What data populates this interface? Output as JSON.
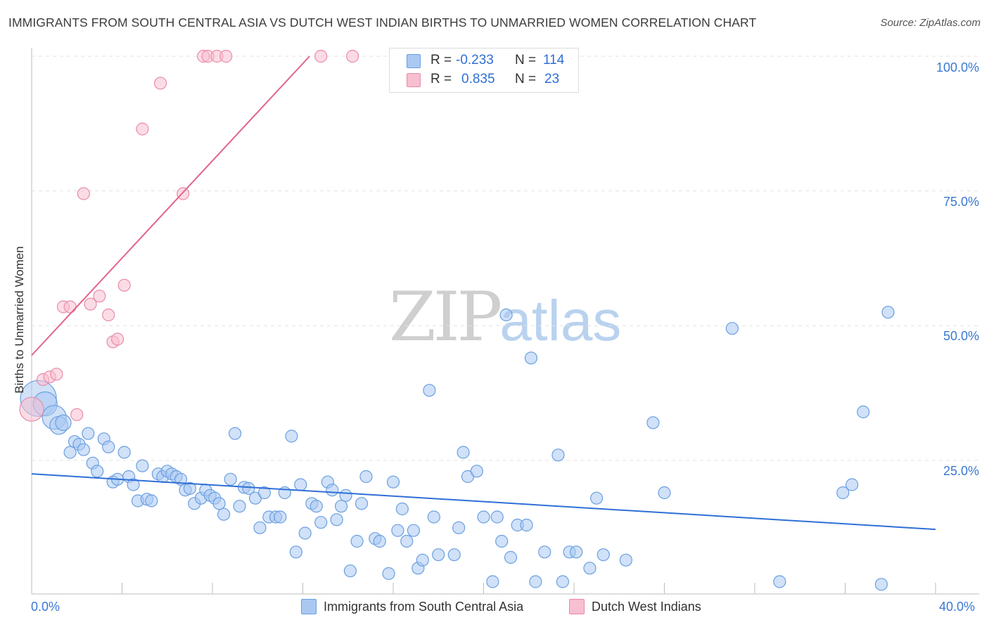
{
  "title": "IMMIGRANTS FROM SOUTH CENTRAL ASIA VS DUTCH WEST INDIAN BIRTHS TO UNMARRIED WOMEN CORRELATION CHART",
  "source": "Source: ZipAtlas.com",
  "watermark": {
    "zip": "ZIP",
    "atlas": "atlas"
  },
  "legend": {
    "rows": [
      {
        "r_label": "R =",
        "r_value": "-0.233",
        "n_label": "N =",
        "n_value": "114",
        "color": "#a9c9f2",
        "border": "#6a9fe0"
      },
      {
        "r_label": "R =",
        "r_value": "0.835",
        "n_label": "N =",
        "n_value": "23",
        "color": "#f7bfd0",
        "border": "#ea8aa8"
      }
    ]
  },
  "bottom_legend": [
    {
      "label": "Immigrants from South Central Asia",
      "color": "#a9c9f2",
      "border": "#6a9fe0"
    },
    {
      "label": "Dutch West Indians",
      "color": "#f7bfd0",
      "border": "#ea8aa8"
    }
  ],
  "chart_data": {
    "type": "scatter",
    "title": "IMMIGRANTS FROM SOUTH CENTRAL ASIA VS DUTCH WEST INDIAN BIRTHS TO UNMARRIED WOMEN CORRELATION CHART",
    "xlabel": "",
    "ylabel": "Births to Unmarried Women",
    "xlim": [
      0,
      40
    ],
    "ylim": [
      0,
      100
    ],
    "x_tick_labels": [
      "0.0%",
      "40.0%"
    ],
    "y_tick_labels": [
      "100.0%",
      "75.0%",
      "50.0%",
      "25.0%"
    ],
    "y_tick_values": [
      100,
      75,
      50,
      25
    ],
    "grid": true,
    "series": [
      {
        "name": "Immigrants from South Central Asia",
        "color": "#6a9fe0",
        "fill": "#a9c9f2",
        "trend": {
          "x": [
            0,
            40
          ],
          "y": [
            22.5,
            12.2
          ],
          "color": "#2f6fd6"
        },
        "points": [
          {
            "x": 0.3,
            "y": 36.5,
            "s": 3
          },
          {
            "x": 0.6,
            "y": 35.5,
            "s": 2
          },
          {
            "x": 1.0,
            "y": 33.0,
            "s": 2
          },
          {
            "x": 1.2,
            "y": 31.5,
            "s": 1.5
          },
          {
            "x": 1.4,
            "y": 32.0,
            "s": 1.3
          },
          {
            "x": 1.7,
            "y": 26.5,
            "s": 1
          },
          {
            "x": 1.9,
            "y": 28.5,
            "s": 1
          },
          {
            "x": 2.1,
            "y": 28.0,
            "s": 1
          },
          {
            "x": 2.3,
            "y": 27.0,
            "s": 1
          },
          {
            "x": 2.5,
            "y": 30.0,
            "s": 1
          },
          {
            "x": 2.7,
            "y": 24.5,
            "s": 1
          },
          {
            "x": 2.9,
            "y": 23.0,
            "s": 1
          },
          {
            "x": 3.2,
            "y": 29.0,
            "s": 1
          },
          {
            "x": 3.4,
            "y": 27.5,
            "s": 1
          },
          {
            "x": 3.6,
            "y": 21.0,
            "s": 1
          },
          {
            "x": 3.8,
            "y": 21.5,
            "s": 1
          },
          {
            "x": 4.1,
            "y": 26.5,
            "s": 1
          },
          {
            "x": 4.3,
            "y": 22.0,
            "s": 1
          },
          {
            "x": 4.5,
            "y": 20.5,
            "s": 1
          },
          {
            "x": 4.7,
            "y": 17.5,
            "s": 1
          },
          {
            "x": 4.9,
            "y": 24.0,
            "s": 1
          },
          {
            "x": 5.1,
            "y": 17.8,
            "s": 1
          },
          {
            "x": 5.3,
            "y": 17.5,
            "s": 1
          },
          {
            "x": 5.6,
            "y": 22.5,
            "s": 1
          },
          {
            "x": 5.8,
            "y": 22.0,
            "s": 1
          },
          {
            "x": 6.0,
            "y": 23.0,
            "s": 1
          },
          {
            "x": 6.2,
            "y": 22.5,
            "s": 1
          },
          {
            "x": 6.4,
            "y": 22.0,
            "s": 1
          },
          {
            "x": 6.6,
            "y": 21.5,
            "s": 1
          },
          {
            "x": 6.8,
            "y": 19.5,
            "s": 1
          },
          {
            "x": 7.0,
            "y": 19.8,
            "s": 1
          },
          {
            "x": 7.2,
            "y": 17.0,
            "s": 1
          },
          {
            "x": 7.5,
            "y": 18.0,
            "s": 1
          },
          {
            "x": 7.7,
            "y": 19.5,
            "s": 1
          },
          {
            "x": 7.9,
            "y": 18.5,
            "s": 1
          },
          {
            "x": 8.1,
            "y": 18.0,
            "s": 1
          },
          {
            "x": 8.3,
            "y": 17.0,
            "s": 1
          },
          {
            "x": 8.5,
            "y": 15.0,
            "s": 1
          },
          {
            "x": 8.8,
            "y": 21.5,
            "s": 1
          },
          {
            "x": 9.0,
            "y": 30.0,
            "s": 1
          },
          {
            "x": 9.2,
            "y": 16.5,
            "s": 1
          },
          {
            "x": 9.4,
            "y": 20.0,
            "s": 1
          },
          {
            "x": 9.6,
            "y": 19.8,
            "s": 1
          },
          {
            "x": 9.9,
            "y": 18.0,
            "s": 1
          },
          {
            "x": 10.1,
            "y": 12.5,
            "s": 1
          },
          {
            "x": 10.3,
            "y": 19.0,
            "s": 1
          },
          {
            "x": 10.5,
            "y": 14.5,
            "s": 1
          },
          {
            "x": 10.8,
            "y": 14.5,
            "s": 1
          },
          {
            "x": 11.0,
            "y": 14.5,
            "s": 1
          },
          {
            "x": 11.2,
            "y": 19.0,
            "s": 1
          },
          {
            "x": 11.5,
            "y": 29.5,
            "s": 1
          },
          {
            "x": 11.7,
            "y": 8.0,
            "s": 1
          },
          {
            "x": 11.9,
            "y": 20.5,
            "s": 1
          },
          {
            "x": 12.1,
            "y": 11.5,
            "s": 1
          },
          {
            "x": 12.4,
            "y": 17.0,
            "s": 1
          },
          {
            "x": 12.6,
            "y": 16.5,
            "s": 1
          },
          {
            "x": 12.8,
            "y": 13.5,
            "s": 1
          },
          {
            "x": 13.1,
            "y": 21.0,
            "s": 1
          },
          {
            "x": 13.3,
            "y": 19.5,
            "s": 1
          },
          {
            "x": 13.5,
            "y": 14.0,
            "s": 1
          },
          {
            "x": 13.7,
            "y": 16.5,
            "s": 1
          },
          {
            "x": 13.9,
            "y": 18.5,
            "s": 1
          },
          {
            "x": 14.1,
            "y": 4.5,
            "s": 1
          },
          {
            "x": 14.4,
            "y": 10.0,
            "s": 1
          },
          {
            "x": 14.6,
            "y": 17.0,
            "s": 1
          },
          {
            "x": 14.8,
            "y": 22.0,
            "s": 1
          },
          {
            "x": 15.2,
            "y": 10.5,
            "s": 1
          },
          {
            "x": 15.4,
            "y": 10.0,
            "s": 1
          },
          {
            "x": 15.8,
            "y": 4.0,
            "s": 1
          },
          {
            "x": 16.0,
            "y": 21.0,
            "s": 1
          },
          {
            "x": 16.2,
            "y": 12.0,
            "s": 1
          },
          {
            "x": 16.4,
            "y": 16.0,
            "s": 1
          },
          {
            "x": 16.6,
            "y": 10.0,
            "s": 1
          },
          {
            "x": 16.9,
            "y": 12.0,
            "s": 1
          },
          {
            "x": 17.1,
            "y": 5.0,
            "s": 1
          },
          {
            "x": 17.3,
            "y": 6.5,
            "s": 1
          },
          {
            "x": 17.6,
            "y": 38.0,
            "s": 1
          },
          {
            "x": 17.8,
            "y": 14.5,
            "s": 1
          },
          {
            "x": 18.0,
            "y": 7.5,
            "s": 1
          },
          {
            "x": 18.7,
            "y": 7.5,
            "s": 1
          },
          {
            "x": 18.9,
            "y": 12.5,
            "s": 1
          },
          {
            "x": 19.1,
            "y": 26.5,
            "s": 1
          },
          {
            "x": 19.3,
            "y": 22.0,
            "s": 1
          },
          {
            "x": 19.7,
            "y": 23.0,
            "s": 1
          },
          {
            "x": 20.0,
            "y": 14.5,
            "s": 1
          },
          {
            "x": 20.4,
            "y": 2.5,
            "s": 1
          },
          {
            "x": 20.6,
            "y": 14.5,
            "s": 1
          },
          {
            "x": 20.8,
            "y": 10.0,
            "s": 1
          },
          {
            "x": 21.0,
            "y": 52.0,
            "s": 1
          },
          {
            "x": 21.2,
            "y": 7.0,
            "s": 1
          },
          {
            "x": 21.5,
            "y": 13.0,
            "s": 1
          },
          {
            "x": 21.9,
            "y": 13.0,
            "s": 1
          },
          {
            "x": 22.1,
            "y": 44.0,
            "s": 1
          },
          {
            "x": 22.3,
            "y": 2.5,
            "s": 1
          },
          {
            "x": 22.7,
            "y": 8.0,
            "s": 1
          },
          {
            "x": 23.3,
            "y": 26.0,
            "s": 1
          },
          {
            "x": 23.5,
            "y": 2.5,
            "s": 1
          },
          {
            "x": 23.8,
            "y": 8.0,
            "s": 1
          },
          {
            "x": 24.1,
            "y": 8.0,
            "s": 1
          },
          {
            "x": 24.7,
            "y": 5.0,
            "s": 1
          },
          {
            "x": 25.0,
            "y": 18.0,
            "s": 1
          },
          {
            "x": 25.3,
            "y": 7.5,
            "s": 1
          },
          {
            "x": 26.3,
            "y": 6.5,
            "s": 1
          },
          {
            "x": 27.5,
            "y": 32.0,
            "s": 1
          },
          {
            "x": 28.0,
            "y": 19.0,
            "s": 1
          },
          {
            "x": 31.0,
            "y": 49.5,
            "s": 1
          },
          {
            "x": 33.1,
            "y": 2.5,
            "s": 1
          },
          {
            "x": 35.9,
            "y": 19.0,
            "s": 1
          },
          {
            "x": 36.3,
            "y": 20.5,
            "s": 1
          },
          {
            "x": 36.8,
            "y": 34.0,
            "s": 1
          },
          {
            "x": 37.6,
            "y": 2.0,
            "s": 1
          },
          {
            "x": 37.9,
            "y": 52.5,
            "s": 1
          }
        ]
      },
      {
        "name": "Dutch West Indians",
        "color": "#ea8aa8",
        "fill": "#f7bfd0",
        "trend": {
          "x": [
            0,
            12.3
          ],
          "y": [
            44.5,
            100
          ],
          "color": "#e2648c"
        },
        "points": [
          {
            "x": 0.0,
            "y": 34.5,
            "s": 2
          },
          {
            "x": 0.5,
            "y": 40.0,
            "s": 1
          },
          {
            "x": 0.8,
            "y": 40.5,
            "s": 1
          },
          {
            "x": 1.1,
            "y": 41.0,
            "s": 1
          },
          {
            "x": 1.4,
            "y": 53.5,
            "s": 1
          },
          {
            "x": 1.7,
            "y": 53.5,
            "s": 1
          },
          {
            "x": 2.0,
            "y": 33.5,
            "s": 1
          },
          {
            "x": 2.3,
            "y": 74.5,
            "s": 1
          },
          {
            "x": 2.6,
            "y": 54.0,
            "s": 1
          },
          {
            "x": 3.0,
            "y": 55.5,
            "s": 1
          },
          {
            "x": 3.4,
            "y": 52.0,
            "s": 1
          },
          {
            "x": 3.6,
            "y": 47.0,
            "s": 1
          },
          {
            "x": 3.8,
            "y": 47.5,
            "s": 1
          },
          {
            "x": 4.1,
            "y": 57.5,
            "s": 1
          },
          {
            "x": 4.9,
            "y": 86.5,
            "s": 1
          },
          {
            "x": 5.7,
            "y": 95.0,
            "s": 1
          },
          {
            "x": 6.7,
            "y": 74.5,
            "s": 1
          },
          {
            "x": 7.6,
            "y": 100,
            "s": 1
          },
          {
            "x": 7.8,
            "y": 100,
            "s": 1
          },
          {
            "x": 8.2,
            "y": 100,
            "s": 1
          },
          {
            "x": 8.6,
            "y": 100,
            "s": 1
          },
          {
            "x": 12.8,
            "y": 100,
            "s": 1
          },
          {
            "x": 14.2,
            "y": 100,
            "s": 1
          }
        ]
      }
    ]
  }
}
